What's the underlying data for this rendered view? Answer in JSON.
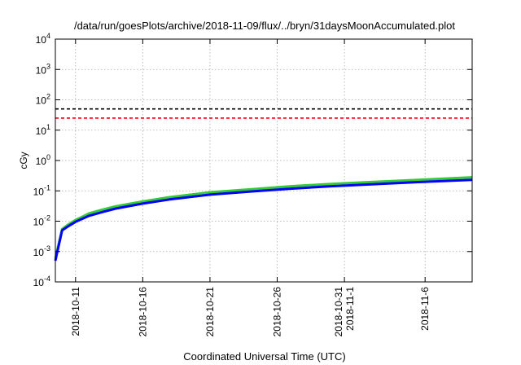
{
  "chart_data": {
    "type": "line",
    "title": "/data/run/goesPlots/archive/2018-11-09/flux/../bryn/31daysMoonAccumulated.plot",
    "xlabel": "Coordinated Universal Time (UTC)",
    "ylabel": "cGy",
    "yscale": "log",
    "ylim": [
      0.0001,
      10000
    ],
    "xlim": [
      "2018-10-09T12:00",
      "2018-11-09T12:00"
    ],
    "grid": true,
    "y_ticks": [
      {
        "value": 0.0001,
        "base": "10",
        "exp": "-4"
      },
      {
        "value": 0.001,
        "base": "10",
        "exp": "-3"
      },
      {
        "value": 0.01,
        "base": "10",
        "exp": "-2"
      },
      {
        "value": 0.1,
        "base": "10",
        "exp": "-1"
      },
      {
        "value": 1,
        "base": "10",
        "exp": "0"
      },
      {
        "value": 10,
        "base": "10",
        "exp": "1"
      },
      {
        "value": 100,
        "base": "10",
        "exp": "2"
      },
      {
        "value": 1000,
        "base": "10",
        "exp": "3"
      },
      {
        "value": 10000,
        "base": "10",
        "exp": "4"
      }
    ],
    "x_ticks": [
      {
        "date": "2018-10-11",
        "lines": [
          "2018-10-11"
        ]
      },
      {
        "date": "2018-10-16",
        "lines": [
          "2018-10-16"
        ]
      },
      {
        "date": "2018-10-21",
        "lines": [
          "2018-10-21"
        ]
      },
      {
        "date": "2018-10-26",
        "lines": [
          "2018-10-26"
        ]
      },
      {
        "date": "2018-10-31",
        "lines": [
          "2018-10-31",
          "2018-11-1"
        ]
      },
      {
        "date": "2018-11-06",
        "lines": [
          "2018-11-6"
        ]
      }
    ],
    "hlines": [
      {
        "value": 50,
        "color": "#000000"
      },
      {
        "value": 25,
        "color": "#ff0000"
      }
    ],
    "series": [
      {
        "color": "#33cc33",
        "x": [
          "2018-10-09T12:00",
          "2018-10-10T00:00",
          "2018-10-10T12:00",
          "2018-10-11T00:00",
          "2018-10-11T12:00",
          "2018-10-12T00:00",
          "2018-10-13T00:00",
          "2018-10-14T00:00",
          "2018-10-16T00:00",
          "2018-10-18T00:00",
          "2018-10-21T00:00",
          "2018-10-24T00:00",
          "2018-10-27T00:00",
          "2018-10-30T00:00",
          "2018-11-02T00:00",
          "2018-11-05T00:00",
          "2018-11-09T12:00"
        ],
        "y": [
          0.0006,
          0.0055,
          0.008,
          0.011,
          0.014,
          0.018,
          0.024,
          0.031,
          0.045,
          0.062,
          0.09,
          0.112,
          0.142,
          0.17,
          0.195,
          0.225,
          0.28
        ]
      },
      {
        "color": "#0000ff",
        "x": [
          "2018-10-09T12:00",
          "2018-10-10T00:00",
          "2018-10-10T12:00",
          "2018-10-11T00:00",
          "2018-10-11T12:00",
          "2018-10-12T00:00",
          "2018-10-13T00:00",
          "2018-10-14T00:00",
          "2018-10-16T00:00",
          "2018-10-18T00:00",
          "2018-10-21T00:00",
          "2018-10-24T00:00",
          "2018-10-27T00:00",
          "2018-10-30T00:00",
          "2018-11-02T00:00",
          "2018-11-05T00:00",
          "2018-11-09T12:00"
        ],
        "y": [
          0.0005,
          0.005,
          0.007,
          0.0095,
          0.012,
          0.015,
          0.02,
          0.026,
          0.038,
          0.052,
          0.075,
          0.095,
          0.118,
          0.142,
          0.163,
          0.19,
          0.23
        ]
      }
    ]
  }
}
